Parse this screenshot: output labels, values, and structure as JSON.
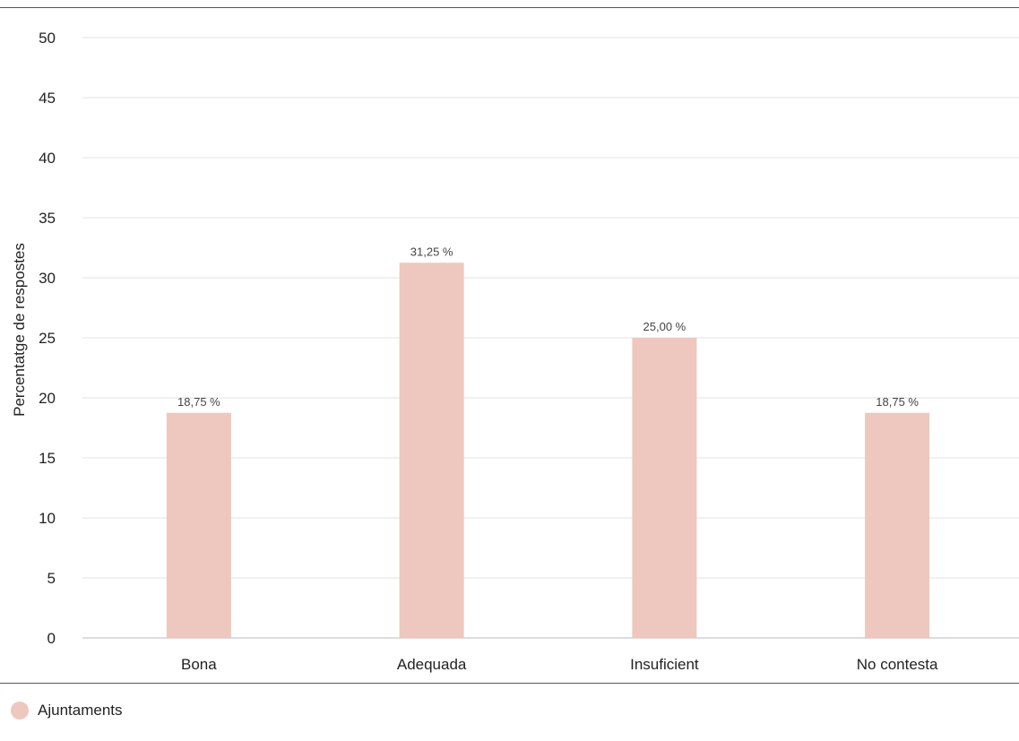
{
  "chart_data": {
    "type": "bar",
    "categories": [
      "Bona",
      "Adequada",
      "Insuficient",
      "No contesta"
    ],
    "series": [
      {
        "name": "Ajuntaments",
        "values": [
          18.75,
          31.25,
          25.0,
          18.75
        ],
        "labels": [
          "18,75 %",
          "31,25 %",
          "25,00 %",
          "18,75 %"
        ],
        "color": "#eec7be"
      }
    ],
    "ylabel": "Percentatge de respostes",
    "ylim": [
      0,
      50
    ],
    "yticks": [
      0,
      5,
      10,
      15,
      20,
      25,
      30,
      35,
      40,
      45,
      50
    ],
    "grid": true,
    "legend_position": "bottom-left"
  }
}
